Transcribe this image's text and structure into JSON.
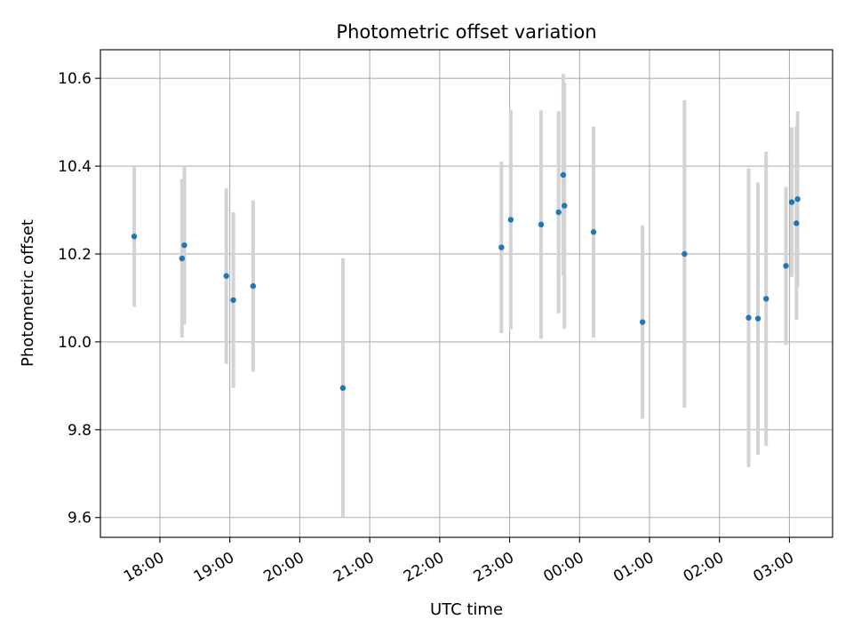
{
  "chart_data": {
    "type": "scatter",
    "title": "Photometric offset variation",
    "xlabel": "UTC time",
    "ylabel": "Photometric offset",
    "ylim": [
      9.555,
      10.665
    ],
    "xlim": [
      "17:09",
      "03:37 (next day)"
    ],
    "grid": true,
    "colors": {
      "point": "#1f77b4",
      "errorbar": "#d3d3d3",
      "grid": "#b0b0b0"
    },
    "x_ticks": [
      "18:00",
      "19:00",
      "20:00",
      "21:00",
      "22:00",
      "23:00",
      "00:00",
      "01:00",
      "02:00",
      "03:00"
    ],
    "y_ticks": [
      "9.6",
      "9.8",
      "10.0",
      "10.2",
      "10.4",
      "10.6"
    ],
    "y_tick_values": [
      9.6,
      9.8,
      10.0,
      10.2,
      10.4,
      10.6
    ],
    "series": [
      {
        "points": [
          {
            "t": "17:38",
            "y": 10.24,
            "err": 0.16
          },
          {
            "t": "18:19",
            "y": 10.19,
            "err": 0.18
          },
          {
            "t": "18:21",
            "y": 10.22,
            "err": 0.18
          },
          {
            "t": "18:57",
            "y": 10.15,
            "err": 0.2
          },
          {
            "t": "19:03",
            "y": 10.095,
            "err": 0.2
          },
          {
            "t": "19:20",
            "y": 10.127,
            "err": 0.195
          },
          {
            "t": "20:37",
            "y": 9.895,
            "err": 0.295
          },
          {
            "t": "22:53",
            "y": 10.215,
            "err": 0.195
          },
          {
            "t": "23:01",
            "y": 10.278,
            "err": 0.25
          },
          {
            "t": "23:27",
            "y": 10.267,
            "err": 0.26
          },
          {
            "t": "23:42",
            "y": 10.295,
            "err": 0.23
          },
          {
            "t": "23:46",
            "y": 10.38,
            "err": 0.23
          },
          {
            "t": "23:47",
            "y": 10.31,
            "err": 0.28
          },
          {
            "t": "00:12",
            "y": 10.25,
            "err": 0.24
          },
          {
            "t": "00:54",
            "y": 10.045,
            "err": 0.22
          },
          {
            "t": "01:30",
            "y": 10.2,
            "err": 0.35
          },
          {
            "t": "02:25",
            "y": 10.055,
            "err": 0.34
          },
          {
            "t": "02:33",
            "y": 10.053,
            "err": 0.31
          },
          {
            "t": "02:40",
            "y": 10.098,
            "err": 0.335
          },
          {
            "t": "02:57",
            "y": 10.173,
            "err": 0.18
          },
          {
            "t": "03:02",
            "y": 10.318,
            "err": 0.17
          },
          {
            "t": "03:06",
            "y": 10.27,
            "err": 0.22
          },
          {
            "t": "03:07",
            "y": 10.325,
            "err": 0.2
          }
        ]
      }
    ]
  }
}
